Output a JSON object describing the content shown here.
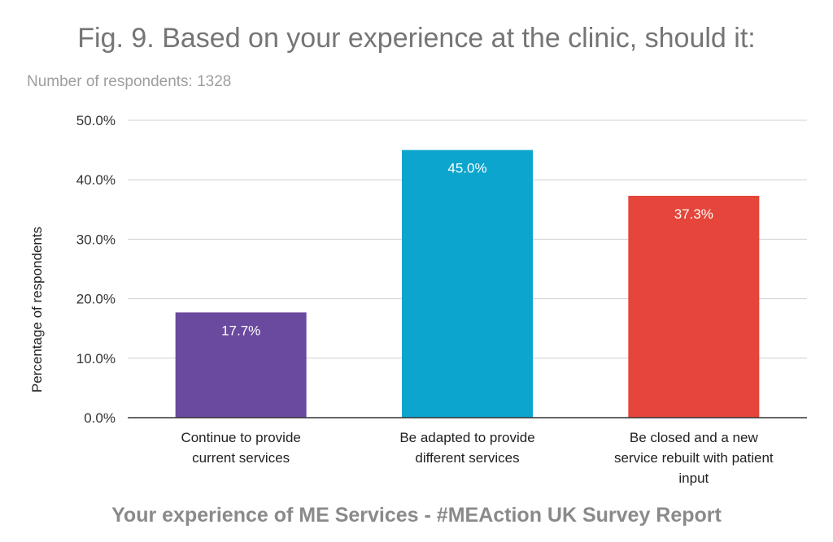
{
  "chart_data": {
    "type": "bar",
    "title": "Fig. 9. Based on your experience at the clinic, should it:",
    "subtitle": "Number of respondents: 1328",
    "ylabel": "Percentage of respondents",
    "xlabel": "",
    "ylim": [
      0,
      50
    ],
    "yticks": [
      0,
      10,
      20,
      30,
      40,
      50
    ],
    "ytick_labels": [
      "0.0%",
      "10.0%",
      "20.0%",
      "30.0%",
      "40.0%",
      "50.0%"
    ],
    "grid": true,
    "legend": "none",
    "categories": [
      [
        "Continue to provide",
        "current services"
      ],
      [
        "Be adapted to provide",
        "different services"
      ],
      [
        "Be closed and a new",
        "service rebuilt with patient",
        "input"
      ]
    ],
    "values": [
      17.7,
      45.0,
      37.3
    ],
    "value_labels": [
      "17.7%",
      "45.0%",
      "37.3%"
    ],
    "colors": [
      "#6a4a9e",
      "#0ba5cd",
      "#e5453a"
    ]
  },
  "footer": "Your experience of ME Services - #MEAction UK Survey Report"
}
